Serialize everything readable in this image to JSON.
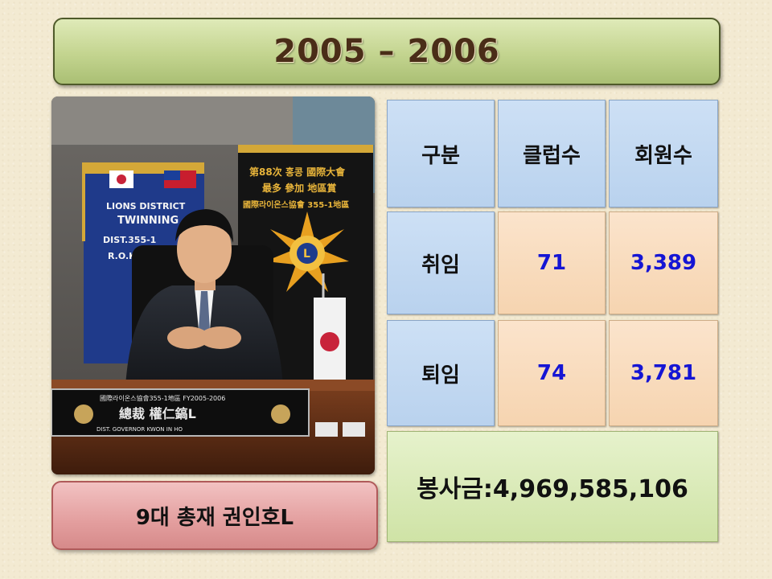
{
  "title": "2005 – 2006",
  "photo": {
    "banner_left_lines": [
      "LIONS DISTRICT",
      "TWINNING",
      "DIST.355-1",
      "R.O.K."
    ],
    "banner_right_lines": [
      "第88次 홍콩 國際大會",
      "最多 參加 地區賞",
      "國際라이온스協會 355-1地區"
    ],
    "nameplate_top": "國際라이온스協會355-1地區 FY2005-2006",
    "nameplate_main": "總裁 權仁鎬L",
    "nameplate_bottom": "DIST. GOVERNOR  KWON  IN  HO"
  },
  "caption": "9대 총재 권인호L",
  "table": {
    "headers": [
      "구분",
      "클럽수",
      "회원수"
    ],
    "rows": [
      {
        "label": "취임",
        "clubs": "71",
        "members": "3,389"
      },
      {
        "label": "퇴임",
        "clubs": "74",
        "members": "3,781"
      }
    ],
    "total": "봉사금:4,969,585,106"
  },
  "colors": {
    "value_text": "#1515d4",
    "title_text": "#4a2d18"
  }
}
